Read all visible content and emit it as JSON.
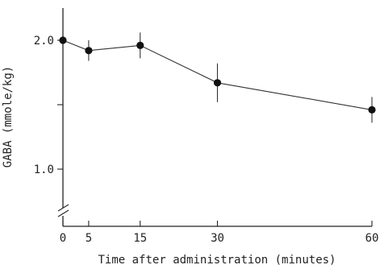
{
  "chart_data": {
    "type": "line",
    "title": "",
    "xlabel": "Time after administration (minutes)",
    "ylabel": "GABA (mmole/kg)",
    "x_ticks": [
      {
        "value": 0,
        "label": "0"
      },
      {
        "value": 5,
        "label": "5"
      },
      {
        "value": 15,
        "label": "15"
      },
      {
        "value": 30,
        "label": "30"
      },
      {
        "value": 60,
        "label": "60"
      }
    ],
    "y_ticks": [
      {
        "value": 1.0,
        "label": "1.0"
      },
      {
        "value": 1.5,
        "label": ""
      },
      {
        "value": 2.0,
        "label": "2.0"
      }
    ],
    "xlim": [
      0,
      60
    ],
    "ylim": [
      0.8,
      2.2
    ],
    "y_axis_break": true,
    "grid": false,
    "legend": false,
    "series": [
      {
        "x": [
          0,
          5,
          15,
          30,
          60
        ],
        "values": [
          2.0,
          1.92,
          1.96,
          1.67,
          1.46
        ],
        "error": [
          0.0,
          0.08,
          0.1,
          0.15,
          0.1
        ]
      }
    ]
  }
}
